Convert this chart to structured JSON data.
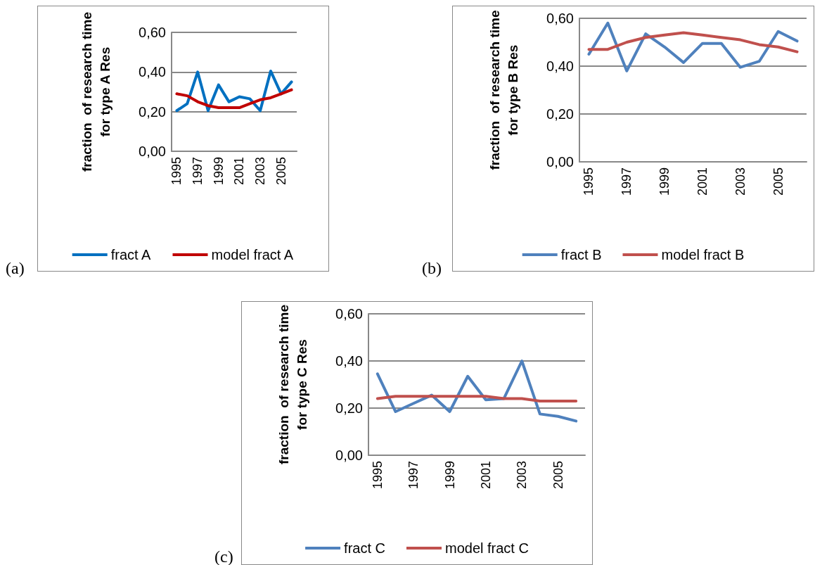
{
  "chart_data": [
    {
      "type": "line",
      "ylabel": "fraction  of research time\nfor type A Res",
      "annotations": [
        "(a)"
      ],
      "categories": [
        "1995",
        null,
        "1997",
        null,
        "1999",
        null,
        "2001",
        null,
        "2003",
        null,
        "2005",
        null
      ],
      "series": [
        {
          "name": "fract A",
          "color": "#0070c0",
          "values": [
            0.205,
            0.24,
            0.4,
            0.205,
            0.335,
            0.25,
            0.275,
            0.265,
            0.205,
            0.405,
            0.29,
            0.35
          ]
        },
        {
          "name": "model fract A",
          "color": "#c00000",
          "values": [
            0.29,
            0.28,
            0.25,
            0.23,
            0.22,
            0.22,
            0.22,
            0.24,
            0.26,
            0.27,
            0.29,
            0.31
          ]
        }
      ],
      "ylim": [
        0,
        0.6
      ],
      "yticks": [
        {
          "value": 0,
          "label": "0,00"
        },
        {
          "value": 0.2,
          "label": "0,20"
        },
        {
          "value": 0.4,
          "label": "0,40"
        },
        {
          "value": 0.6,
          "label": "0,60"
        }
      ],
      "grid": "y",
      "legend": "bottom",
      "marker": "none",
      "line_style": "solid"
    },
    {
      "type": "line",
      "ylabel": "fraction  of research time\nfor type B Res",
      "annotations": [
        "(b)"
      ],
      "categories": [
        "1995",
        null,
        "1997",
        null,
        "1999",
        null,
        "2001",
        null,
        "2003",
        null,
        "2005",
        null
      ],
      "series": [
        {
          "name": "fract B",
          "color": "#4f81bd",
          "values": [
            0.45,
            0.58,
            0.38,
            0.535,
            0.48,
            0.415,
            0.495,
            0.495,
            0.395,
            0.42,
            0.545,
            0.505
          ]
        },
        {
          "name": "model fract B",
          "color": "#c0504d",
          "values": [
            0.47,
            0.47,
            0.5,
            0.52,
            0.53,
            0.54,
            0.53,
            0.52,
            0.51,
            0.49,
            0.48,
            0.46
          ]
        }
      ],
      "ylim": [
        0,
        0.6
      ],
      "yticks": [
        {
          "value": 0,
          "label": "0,00"
        },
        {
          "value": 0.2,
          "label": "0,20"
        },
        {
          "value": 0.4,
          "label": "0,40"
        },
        {
          "value": 0.6,
          "label": "0,60"
        }
      ],
      "grid": "y",
      "legend": "bottom",
      "marker": "none",
      "line_style": "solid"
    },
    {
      "type": "line",
      "ylabel": "fraction  of research time\nfor type C Res",
      "annotations": [
        "(c)"
      ],
      "categories": [
        "1995",
        null,
        "1997",
        null,
        "1999",
        null,
        "2001",
        null,
        "2003",
        null,
        "2005",
        null
      ],
      "series": [
        {
          "name": "fract C",
          "color": "#4f81bd",
          "values": [
            0.345,
            0.185,
            0.22,
            0.255,
            0.185,
            0.335,
            0.235,
            0.24,
            0.4,
            0.175,
            0.165,
            0.145
          ]
        },
        {
          "name": "model fract C",
          "color": "#c0504d",
          "values": [
            0.24,
            0.25,
            0.25,
            0.25,
            0.25,
            0.25,
            0.25,
            0.24,
            0.24,
            0.23,
            0.23,
            0.23
          ]
        }
      ],
      "ylim": [
        0,
        0.6
      ],
      "yticks": [
        {
          "value": 0,
          "label": "0,00"
        },
        {
          "value": 0.2,
          "label": "0,20"
        },
        {
          "value": 0.4,
          "label": "0,40"
        },
        {
          "value": 0.6,
          "label": "0,60"
        }
      ],
      "grid": "y",
      "legend": "bottom",
      "marker": "none",
      "line_style": "solid"
    }
  ]
}
